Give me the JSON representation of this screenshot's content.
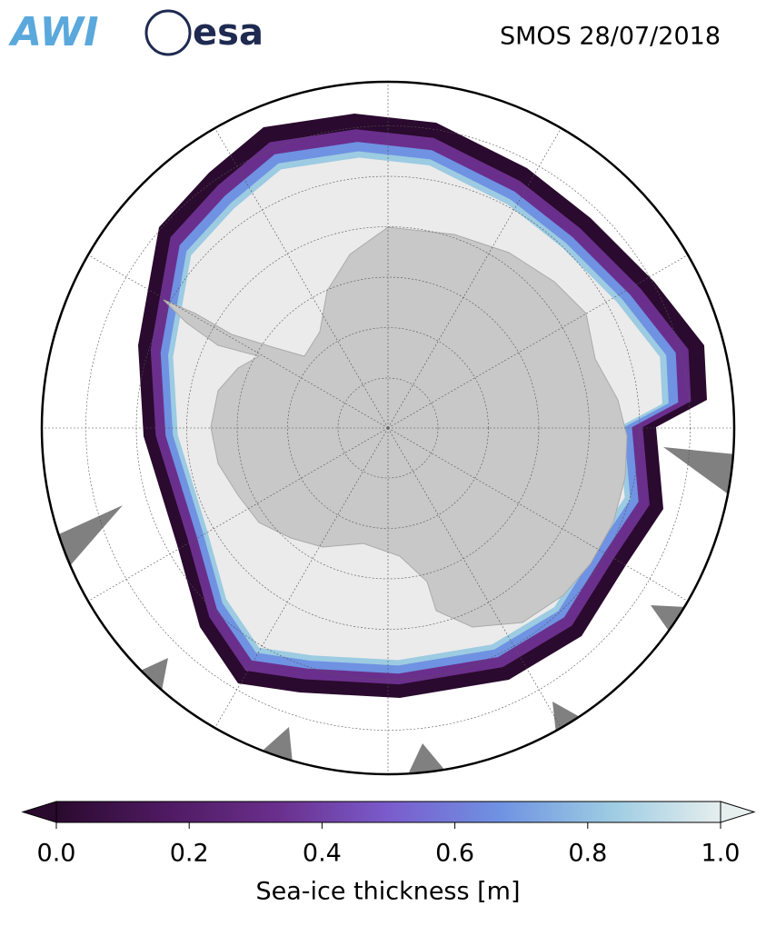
{
  "header": {
    "logos": [
      "AWI",
      "esa"
    ],
    "title": "SMOS 28/07/2018"
  },
  "colorbar": {
    "label": "Sea-ice thickness [m]",
    "lim": [
      0,
      1
    ],
    "ticks": [
      {
        "value": 0,
        "label": "0.0"
      },
      0.2,
      0.4,
      0.6,
      0.8,
      {
        "value": 1,
        "label": "1.0"
      }
    ],
    "colormap": [
      "#2a0a2e",
      "#4f1a62",
      "#6a2f8c",
      "#7a5ccc",
      "#6f92e2",
      "#9ccbe2",
      "#e6eeee"
    ]
  }
}
